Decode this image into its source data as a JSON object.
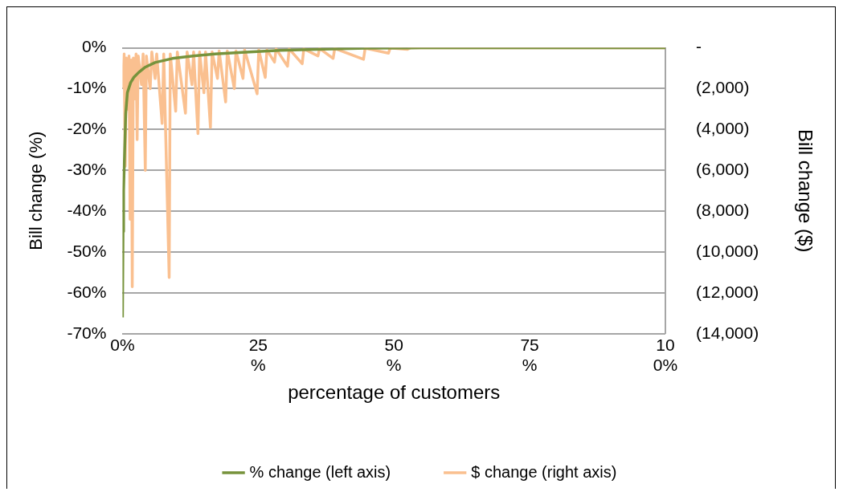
{
  "chart_data": {
    "type": "line",
    "xlabel": "percentage of customers",
    "ylabel": "Bill change (%)",
    "y2label": "Bill change ($)",
    "xlim": [
      0,
      100
    ],
    "xticks": [
      {
        "value": 0,
        "label": "0%"
      },
      {
        "value": 25,
        "label": "25%"
      },
      {
        "value": 50,
        "label": "50%"
      },
      {
        "value": 75,
        "label": "75%"
      },
      {
        "value": 100,
        "label": "100%"
      }
    ],
    "ylim": [
      -70,
      0
    ],
    "yticks": [
      {
        "value": 0,
        "label": "0%"
      },
      {
        "value": -10,
        "label": "-10%"
      },
      {
        "value": -20,
        "label": "-20%"
      },
      {
        "value": -30,
        "label": "-30%"
      },
      {
        "value": -40,
        "label": "-40%"
      },
      {
        "value": -50,
        "label": "-50%"
      },
      {
        "value": -60,
        "label": "-60%"
      },
      {
        "value": -70,
        "label": "-70%"
      }
    ],
    "y2lim": [
      -14000,
      0
    ],
    "y2ticks": [
      {
        "value": 0,
        "label": "-"
      },
      {
        "value": -2000,
        "label": "(2,000)"
      },
      {
        "value": -4000,
        "label": "(4,000)"
      },
      {
        "value": -6000,
        "label": "(6,000)"
      },
      {
        "value": -8000,
        "label": "(8,000)"
      },
      {
        "value": -10000,
        "label": "(10,000)"
      },
      {
        "value": -12000,
        "label": "(12,000)"
      },
      {
        "value": -14000,
        "label": "(14,000)"
      }
    ],
    "grid": "y",
    "legend": "bottom",
    "marker": "none",
    "line_style": "solid",
    "series": [
      {
        "name": "% change (left axis)",
        "color": "#77933c",
        "x": [
          0,
          0.1,
          0.2,
          0.4,
          0.6,
          0.9,
          1.5,
          2.1,
          3,
          4.1,
          6,
          9.2,
          13,
          17,
          22,
          29,
          37,
          45,
          55,
          100
        ],
        "values": [
          -66,
          -45,
          -35,
          -25,
          -16,
          -11,
          -8.5,
          -7.2,
          -6,
          -4.8,
          -3.6,
          -2.6,
          -2,
          -1.5,
          -1.1,
          -0.6,
          -0.3,
          -0.1,
          0,
          0
        ]
      },
      {
        "name": "$ change (right axis)",
        "color": "#fac090",
        "axis": "y2",
        "x": [
          0,
          0.3,
          0.5,
          0.7,
          1.0,
          1.2,
          1.4,
          1.6,
          1.8,
          2.0,
          2.3,
          2.5,
          2.7,
          2.9,
          3.5,
          3.8,
          4.2,
          4.4,
          5.1,
          5.4,
          6.0,
          6.3,
          7.3,
          7.6,
          8.6,
          8.8,
          9.8,
          10.1,
          11.6,
          11.9,
          12.8,
          13.1,
          13.9,
          14.2,
          15.0,
          15.3,
          16.2,
          16.5,
          17.5,
          17.8,
          19,
          19.3,
          20.6,
          20.9,
          22.2,
          22.5,
          24.8,
          25.1,
          26.3,
          26.6,
          28,
          28.3,
          30.4,
          30.7,
          33.1,
          33.4,
          36,
          36.3,
          38.8,
          39.1,
          44.4,
          44.7,
          49,
          49.3,
          52.5,
          53,
          100
        ],
        "values": [
          -2000,
          -300,
          -5800,
          -500,
          -3000,
          -400,
          -8400,
          -600,
          -11700,
          -500,
          -2500,
          -300,
          -4500,
          -400,
          -1800,
          -300,
          -6000,
          -400,
          -2000,
          -200,
          -1500,
          -300,
          -3700,
          -300,
          -11250,
          -300,
          -3100,
          -200,
          -3200,
          -200,
          -1800,
          -200,
          -4200,
          -200,
          -2200,
          -200,
          -3900,
          -200,
          -1500,
          -150,
          -2650,
          -150,
          -2000,
          -150,
          -1500,
          -100,
          -2250,
          -100,
          -1450,
          -100,
          -700,
          -50,
          -900,
          -50,
          -780,
          -50,
          -400,
          -30,
          -520,
          -30,
          -560,
          -20,
          -260,
          -10,
          -70,
          0,
          0
        ]
      }
    ]
  }
}
